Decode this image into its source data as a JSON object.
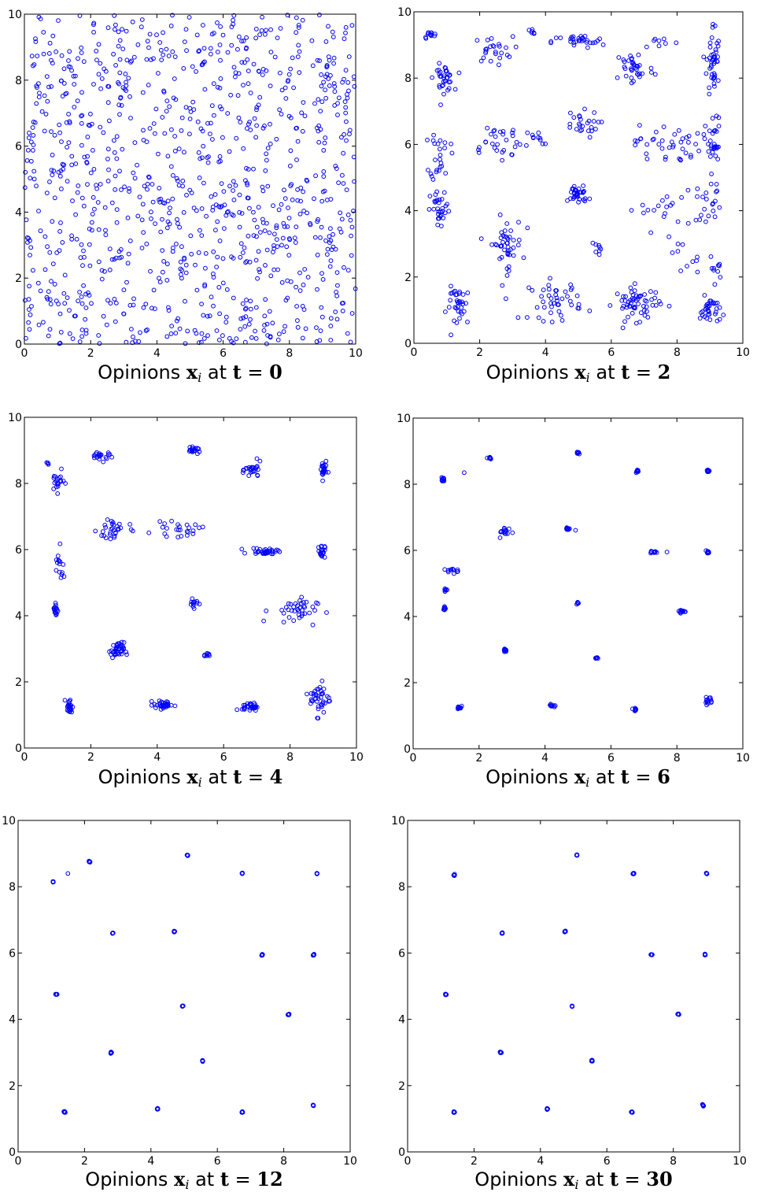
{
  "chart_data": [
    {
      "type": "scatter",
      "title": "Opinions x_i at t = 0",
      "caption": {
        "prefix": "Opinions ",
        "var": "x",
        "sub": "i",
        "mid": " at ",
        "t_label": "t",
        "eq": " = ",
        "t_value": "0"
      },
      "xlim": [
        0,
        10
      ],
      "ylim": [
        0,
        10
      ],
      "xticks": [
        "0",
        "2",
        "4",
        "6",
        "8",
        "10"
      ],
      "yticks": [
        "0",
        "2",
        "4",
        "6",
        "8",
        "10"
      ],
      "grid": false,
      "distribution": "uniform-random",
      "clusters": [],
      "series": [
        {
          "marker": "open-circle",
          "color": "#0000ff",
          "count": 1000
        }
      ]
    },
    {
      "type": "scatter",
      "title": "Opinions x_i at t = 2",
      "caption": {
        "prefix": "Opinions ",
        "var": "x",
        "sub": "i",
        "mid": " at ",
        "t_label": "t",
        "eq": " = ",
        "t_value": "2"
      },
      "xlim": [
        0,
        10
      ],
      "ylim": [
        0,
        10
      ],
      "xticks": [
        "0",
        "2",
        "4",
        "6",
        "8",
        "10"
      ],
      "yticks": [
        "0",
        "2",
        "4",
        "6",
        "8",
        "10"
      ],
      "grid": false,
      "distribution": "loose-clusters",
      "clusters": [
        {
          "x": 0.5,
          "y": 9.3,
          "n": 12,
          "sx": 0.1,
          "sy": 0.05
        },
        {
          "x": 0.9,
          "y": 8.0,
          "n": 35,
          "sx": 0.15,
          "sy": 0.2
        },
        {
          "x": 2.4,
          "y": 8.85,
          "n": 25,
          "sx": 0.3,
          "sy": 0.2
        },
        {
          "x": 3.6,
          "y": 9.4,
          "n": 6,
          "sx": 0.1,
          "sy": 0.05
        },
        {
          "x": 5.0,
          "y": 9.1,
          "n": 30,
          "sx": 0.4,
          "sy": 0.1
        },
        {
          "x": 6.7,
          "y": 8.3,
          "n": 35,
          "sx": 0.3,
          "sy": 0.3
        },
        {
          "x": 7.5,
          "y": 9.1,
          "n": 8,
          "sx": 0.3,
          "sy": 0.1
        },
        {
          "x": 9.1,
          "y": 8.5,
          "n": 45,
          "sx": 0.1,
          "sy": 0.6
        },
        {
          "x": 0.8,
          "y": 5.7,
          "n": 25,
          "sx": 0.15,
          "sy": 0.4
        },
        {
          "x": 2.5,
          "y": 6.1,
          "n": 30,
          "sx": 0.5,
          "sy": 0.3
        },
        {
          "x": 5.0,
          "y": 6.6,
          "n": 25,
          "sx": 0.3,
          "sy": 0.2
        },
        {
          "x": 3.7,
          "y": 6.2,
          "n": 10,
          "sx": 0.2,
          "sy": 0.1
        },
        {
          "x": 7.7,
          "y": 6.0,
          "n": 40,
          "sx": 0.5,
          "sy": 0.3
        },
        {
          "x": 9.1,
          "y": 6.0,
          "n": 30,
          "sx": 0.12,
          "sy": 0.4
        },
        {
          "x": 0.8,
          "y": 4.0,
          "n": 30,
          "sx": 0.15,
          "sy": 0.3
        },
        {
          "x": 5.0,
          "y": 4.5,
          "n": 35,
          "sx": 0.15,
          "sy": 0.15
        },
        {
          "x": 7.5,
          "y": 4.0,
          "n": 20,
          "sx": 0.5,
          "sy": 0.3
        },
        {
          "x": 9.0,
          "y": 4.3,
          "n": 20,
          "sx": 0.2,
          "sy": 0.3
        },
        {
          "x": 2.8,
          "y": 3.0,
          "n": 45,
          "sx": 0.25,
          "sy": 0.4
        },
        {
          "x": 5.6,
          "y": 2.8,
          "n": 8,
          "sx": 0.1,
          "sy": 0.1
        },
        {
          "x": 8.1,
          "y": 2.5,
          "n": 10,
          "sx": 0.3,
          "sy": 0.3
        },
        {
          "x": 9.2,
          "y": 2.3,
          "n": 10,
          "sx": 0.1,
          "sy": 0.2
        },
        {
          "x": 1.4,
          "y": 1.1,
          "n": 35,
          "sx": 0.2,
          "sy": 0.3
        },
        {
          "x": 4.3,
          "y": 1.3,
          "n": 45,
          "sx": 0.4,
          "sy": 0.3
        },
        {
          "x": 6.8,
          "y": 1.2,
          "n": 60,
          "sx": 0.35,
          "sy": 0.25
        },
        {
          "x": 9.0,
          "y": 1.0,
          "n": 35,
          "sx": 0.15,
          "sy": 0.2
        }
      ],
      "series": [
        {
          "marker": "open-circle",
          "color": "#0000ff"
        }
      ]
    },
    {
      "type": "scatter",
      "title": "Opinions x_i at t = 4",
      "caption": {
        "prefix": "Opinions ",
        "var": "x",
        "sub": "i",
        "mid": " at ",
        "t_label": "t",
        "eq": " = ",
        "t_value": "4"
      },
      "xlim": [
        0,
        10
      ],
      "ylim": [
        0,
        10
      ],
      "xticks": [
        "0",
        "2",
        "4",
        "6",
        "8",
        "10"
      ],
      "yticks": [
        "0",
        "2",
        "4",
        "6",
        "8",
        "10"
      ],
      "grid": false,
      "distribution": "tight-clusters",
      "clusters": [
        {
          "x": 0.7,
          "y": 8.6,
          "n": 4,
          "sx": 0.03,
          "sy": 0.03
        },
        {
          "x": 1.0,
          "y": 8.05,
          "n": 20,
          "sx": 0.1,
          "sy": 0.15
        },
        {
          "x": 2.3,
          "y": 8.85,
          "n": 20,
          "sx": 0.2,
          "sy": 0.08
        },
        {
          "x": 5.1,
          "y": 9.0,
          "n": 20,
          "sx": 0.1,
          "sy": 0.04
        },
        {
          "x": 6.9,
          "y": 8.4,
          "n": 25,
          "sx": 0.12,
          "sy": 0.12
        },
        {
          "x": 9.0,
          "y": 8.4,
          "n": 25,
          "sx": 0.05,
          "sy": 0.15
        },
        {
          "x": 1.05,
          "y": 5.4,
          "n": 15,
          "sx": 0.08,
          "sy": 0.3
        },
        {
          "x": 2.7,
          "y": 6.6,
          "n": 30,
          "sx": 0.25,
          "sy": 0.2
        },
        {
          "x": 4.6,
          "y": 6.6,
          "n": 25,
          "sx": 0.35,
          "sy": 0.1
        },
        {
          "x": 7.3,
          "y": 5.95,
          "n": 35,
          "sx": 0.25,
          "sy": 0.05
        },
        {
          "x": 8.95,
          "y": 5.95,
          "n": 20,
          "sx": 0.05,
          "sy": 0.1
        },
        {
          "x": 0.95,
          "y": 4.2,
          "n": 18,
          "sx": 0.04,
          "sy": 0.12
        },
        {
          "x": 5.1,
          "y": 4.4,
          "n": 12,
          "sx": 0.08,
          "sy": 0.08
        },
        {
          "x": 8.1,
          "y": 4.15,
          "n": 40,
          "sx": 0.35,
          "sy": 0.2
        },
        {
          "x": 2.8,
          "y": 2.95,
          "n": 40,
          "sx": 0.1,
          "sy": 0.12
        },
        {
          "x": 5.5,
          "y": 2.8,
          "n": 8,
          "sx": 0.04,
          "sy": 0.03
        },
        {
          "x": 1.35,
          "y": 1.25,
          "n": 25,
          "sx": 0.05,
          "sy": 0.12
        },
        {
          "x": 4.2,
          "y": 1.3,
          "n": 35,
          "sx": 0.15,
          "sy": 0.06
        },
        {
          "x": 6.8,
          "y": 1.25,
          "n": 30,
          "sx": 0.12,
          "sy": 0.06
        },
        {
          "x": 8.9,
          "y": 1.5,
          "n": 40,
          "sx": 0.15,
          "sy": 0.25
        }
      ],
      "series": [
        {
          "marker": "open-circle",
          "color": "#0000ff"
        }
      ]
    },
    {
      "type": "scatter",
      "title": "Opinions x_i at t = 6",
      "caption": {
        "prefix": "Opinions ",
        "var": "x",
        "sub": "i",
        "mid": " at ",
        "t_label": "t",
        "eq": " = ",
        "t_value": "6"
      },
      "xlim": [
        0,
        10
      ],
      "ylim": [
        0,
        10
      ],
      "xticks": [
        "0",
        "2",
        "4",
        "6",
        "8",
        "10"
      ],
      "yticks": [
        "0",
        "2",
        "4",
        "6",
        "8",
        "10"
      ],
      "grid": false,
      "distribution": "tight-clusters",
      "clusters": [
        {
          "x": 0.9,
          "y": 8.15,
          "n": 10,
          "sx": 0.03,
          "sy": 0.05
        },
        {
          "x": 1.55,
          "y": 8.35,
          "n": 1,
          "sx": 0,
          "sy": 0
        },
        {
          "x": 2.3,
          "y": 8.8,
          "n": 10,
          "sx": 0.05,
          "sy": 0.02
        },
        {
          "x": 5.0,
          "y": 8.95,
          "n": 10,
          "sx": 0.03,
          "sy": 0.02
        },
        {
          "x": 6.8,
          "y": 8.4,
          "n": 10,
          "sx": 0.03,
          "sy": 0.03
        },
        {
          "x": 8.95,
          "y": 8.4,
          "n": 10,
          "sx": 0.02,
          "sy": 0.02
        },
        {
          "x": 1.2,
          "y": 5.4,
          "n": 12,
          "sx": 0.12,
          "sy": 0.04
        },
        {
          "x": 1.0,
          "y": 4.8,
          "n": 6,
          "sx": 0.02,
          "sy": 0.02
        },
        {
          "x": 2.8,
          "y": 6.55,
          "n": 15,
          "sx": 0.1,
          "sy": 0.08
        },
        {
          "x": 4.7,
          "y": 6.65,
          "n": 12,
          "sx": 0.08,
          "sy": 0.02
        },
        {
          "x": 7.3,
          "y": 5.95,
          "n": 10,
          "sx": 0.05,
          "sy": 0.02
        },
        {
          "x": 7.7,
          "y": 5.95,
          "n": 1,
          "sx": 0,
          "sy": 0
        },
        {
          "x": 8.95,
          "y": 5.95,
          "n": 10,
          "sx": 0.02,
          "sy": 0.02
        },
        {
          "x": 0.95,
          "y": 4.25,
          "n": 8,
          "sx": 0.02,
          "sy": 0.03
        },
        {
          "x": 5.0,
          "y": 4.4,
          "n": 8,
          "sx": 0.02,
          "sy": 0.02
        },
        {
          "x": 8.15,
          "y": 4.15,
          "n": 12,
          "sx": 0.06,
          "sy": 0.03
        },
        {
          "x": 2.8,
          "y": 3.0,
          "n": 10,
          "sx": 0.03,
          "sy": 0.03
        },
        {
          "x": 5.55,
          "y": 2.75,
          "n": 6,
          "sx": 0.02,
          "sy": 0.02
        },
        {
          "x": 1.4,
          "y": 1.25,
          "n": 10,
          "sx": 0.03,
          "sy": 0.04
        },
        {
          "x": 4.2,
          "y": 1.3,
          "n": 10,
          "sx": 0.05,
          "sy": 0.02
        },
        {
          "x": 6.75,
          "y": 1.2,
          "n": 10,
          "sx": 0.04,
          "sy": 0.02
        },
        {
          "x": 8.95,
          "y": 1.45,
          "n": 14,
          "sx": 0.06,
          "sy": 0.06
        }
      ],
      "series": [
        {
          "marker": "open-circle",
          "color": "#0000ff"
        }
      ]
    },
    {
      "type": "scatter",
      "title": "Opinions x_i at t = 12",
      "caption": {
        "prefix": "Opinions ",
        "var": "x",
        "sub": "i",
        "mid": " at ",
        "t_label": "t",
        "eq": " = ",
        "t_value": "12"
      },
      "xlim": [
        0,
        10
      ],
      "ylim": [
        0,
        10
      ],
      "xticks": [
        "0",
        "2",
        "4",
        "6",
        "8",
        "10"
      ],
      "yticks": [
        "0",
        "2",
        "4",
        "6",
        "8",
        "10"
      ],
      "grid": false,
      "distribution": "converged-clusters",
      "clusters": [
        {
          "x": 1.05,
          "y": 8.15,
          "n": 6,
          "sx": 0.01,
          "sy": 0.01
        },
        {
          "x": 1.5,
          "y": 8.4,
          "n": 1,
          "sx": 0,
          "sy": 0
        },
        {
          "x": 2.15,
          "y": 8.75,
          "n": 6,
          "sx": 0.01,
          "sy": 0.01
        },
        {
          "x": 5.1,
          "y": 8.95,
          "n": 6,
          "sx": 0.01,
          "sy": 0.01
        },
        {
          "x": 6.75,
          "y": 8.4,
          "n": 6,
          "sx": 0.01,
          "sy": 0.01
        },
        {
          "x": 9.0,
          "y": 8.4,
          "n": 6,
          "sx": 0.01,
          "sy": 0.01
        },
        {
          "x": 2.85,
          "y": 6.6,
          "n": 6,
          "sx": 0.01,
          "sy": 0.01
        },
        {
          "x": 4.7,
          "y": 6.65,
          "n": 6,
          "sx": 0.01,
          "sy": 0.01
        },
        {
          "x": 7.35,
          "y": 5.95,
          "n": 6,
          "sx": 0.01,
          "sy": 0.01
        },
        {
          "x": 8.9,
          "y": 5.95,
          "n": 6,
          "sx": 0.01,
          "sy": 0.01
        },
        {
          "x": 1.15,
          "y": 4.75,
          "n": 6,
          "sx": 0.01,
          "sy": 0.01
        },
        {
          "x": 4.95,
          "y": 4.4,
          "n": 6,
          "sx": 0.01,
          "sy": 0.01
        },
        {
          "x": 8.15,
          "y": 4.15,
          "n": 6,
          "sx": 0.01,
          "sy": 0.01
        },
        {
          "x": 2.8,
          "y": 3.0,
          "n": 6,
          "sx": 0.01,
          "sy": 0.01
        },
        {
          "x": 5.55,
          "y": 2.75,
          "n": 6,
          "sx": 0.01,
          "sy": 0.01
        },
        {
          "x": 1.4,
          "y": 1.2,
          "n": 6,
          "sx": 0.01,
          "sy": 0.01
        },
        {
          "x": 4.2,
          "y": 1.3,
          "n": 6,
          "sx": 0.01,
          "sy": 0.01
        },
        {
          "x": 6.75,
          "y": 1.2,
          "n": 6,
          "sx": 0.01,
          "sy": 0.01
        },
        {
          "x": 8.9,
          "y": 1.4,
          "n": 6,
          "sx": 0.01,
          "sy": 0.01
        }
      ],
      "series": [
        {
          "marker": "open-circle",
          "color": "#0000ff"
        }
      ]
    },
    {
      "type": "scatter",
      "title": "Opinions x_i at t = 30",
      "caption": {
        "prefix": "Opinions ",
        "var": "x",
        "sub": "i",
        "mid": " at ",
        "t_label": "t",
        "eq": " = ",
        "t_value": "30"
      },
      "xlim": [
        0,
        10
      ],
      "ylim": [
        0,
        10
      ],
      "xticks": [
        "0",
        "2",
        "4",
        "6",
        "8",
        "10"
      ],
      "yticks": [
        "0",
        "2",
        "4",
        "6",
        "8",
        "10"
      ],
      "grid": false,
      "distribution": "converged-clusters",
      "clusters": [
        {
          "x": 1.4,
          "y": 8.35,
          "n": 6,
          "sx": 0.01,
          "sy": 0.01
        },
        {
          "x": 5.1,
          "y": 8.95,
          "n": 6,
          "sx": 0.01,
          "sy": 0.01
        },
        {
          "x": 6.8,
          "y": 8.4,
          "n": 6,
          "sx": 0.01,
          "sy": 0.01
        },
        {
          "x": 9.0,
          "y": 8.4,
          "n": 6,
          "sx": 0.01,
          "sy": 0.01
        },
        {
          "x": 2.85,
          "y": 6.6,
          "n": 6,
          "sx": 0.01,
          "sy": 0.01
        },
        {
          "x": 4.75,
          "y": 6.65,
          "n": 6,
          "sx": 0.01,
          "sy": 0.01
        },
        {
          "x": 7.35,
          "y": 5.95,
          "n": 6,
          "sx": 0.01,
          "sy": 0.01
        },
        {
          "x": 8.95,
          "y": 5.95,
          "n": 6,
          "sx": 0.01,
          "sy": 0.01
        },
        {
          "x": 1.15,
          "y": 4.75,
          "n": 6,
          "sx": 0.01,
          "sy": 0.01
        },
        {
          "x": 4.95,
          "y": 4.4,
          "n": 6,
          "sx": 0.01,
          "sy": 0.01
        },
        {
          "x": 8.15,
          "y": 4.15,
          "n": 6,
          "sx": 0.01,
          "sy": 0.01
        },
        {
          "x": 2.8,
          "y": 3.0,
          "n": 6,
          "sx": 0.01,
          "sy": 0.01
        },
        {
          "x": 5.55,
          "y": 2.75,
          "n": 6,
          "sx": 0.01,
          "sy": 0.01
        },
        {
          "x": 1.4,
          "y": 1.2,
          "n": 6,
          "sx": 0.01,
          "sy": 0.01
        },
        {
          "x": 4.2,
          "y": 1.3,
          "n": 6,
          "sx": 0.01,
          "sy": 0.01
        },
        {
          "x": 6.75,
          "y": 1.2,
          "n": 6,
          "sx": 0.01,
          "sy": 0.01
        },
        {
          "x": 8.9,
          "y": 1.4,
          "n": 6,
          "sx": 0.01,
          "sy": 0.01
        }
      ],
      "series": [
        {
          "marker": "open-circle",
          "color": "#0000ff"
        }
      ]
    }
  ]
}
